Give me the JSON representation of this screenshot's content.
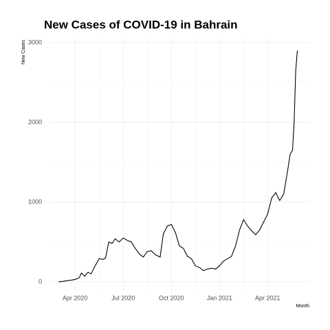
{
  "chart_data": {
    "type": "line",
    "title": "New Cases of COVID-19 in Bahrain",
    "y_label": "New Cases",
    "x_label": "Month",
    "x": [
      1.97,
      2.25,
      2.5,
      2.75,
      3.0,
      3.25,
      3.4,
      3.6,
      3.8,
      4.0,
      4.25,
      4.5,
      4.75,
      4.9,
      5.1,
      5.3,
      5.5,
      5.75,
      6.0,
      6.25,
      6.5,
      6.75,
      7.0,
      7.25,
      7.5,
      7.75,
      8.0,
      8.3,
      8.5,
      8.75,
      9.0,
      9.25,
      9.5,
      9.75,
      10.0,
      10.25,
      10.5,
      10.75,
      11.0,
      11.25,
      11.5,
      11.75,
      12.0,
      12.25,
      12.5,
      12.75,
      13.0,
      13.25,
      13.5,
      13.75,
      14.0,
      14.25,
      14.5,
      14.75,
      15.0,
      15.25,
      15.5,
      15.75,
      16.0,
      16.25,
      16.4,
      16.55,
      16.65,
      16.75,
      16.85
    ],
    "series": [
      {
        "name": "New Cases",
        "color": "#000000",
        "values": [
          0,
          5,
          15,
          20,
          30,
          50,
          110,
          70,
          120,
          100,
          200,
          290,
          280,
          300,
          500,
          480,
          540,
          500,
          550,
          520,
          500,
          420,
          350,
          310,
          380,
          390,
          340,
          310,
          600,
          700,
          720,
          620,
          450,
          420,
          320,
          290,
          200,
          180,
          140,
          160,
          170,
          160,
          200,
          260,
          290,
          320,
          450,
          650,
          780,
          700,
          640,
          590,
          650,
          750,
          850,
          1050,
          1120,
          1020,
          1100,
          1400,
          1600,
          1650,
          2000,
          2650,
          2900
        ]
      }
    ],
    "xlim": [
      1.45,
      17.6
    ],
    "xticks": [
      {
        "value": 3,
        "label": "Apr 2020"
      },
      {
        "value": 6,
        "label": "Jul 2020"
      },
      {
        "value": 9,
        "label": "Oct 2020"
      },
      {
        "value": 12,
        "label": "Jan 2021"
      },
      {
        "value": 15,
        "label": "Apr 2021"
      }
    ],
    "ylim": [
      -130,
      3060
    ],
    "yticks": [
      0,
      1000,
      2000,
      3000
    ],
    "grid": true
  }
}
